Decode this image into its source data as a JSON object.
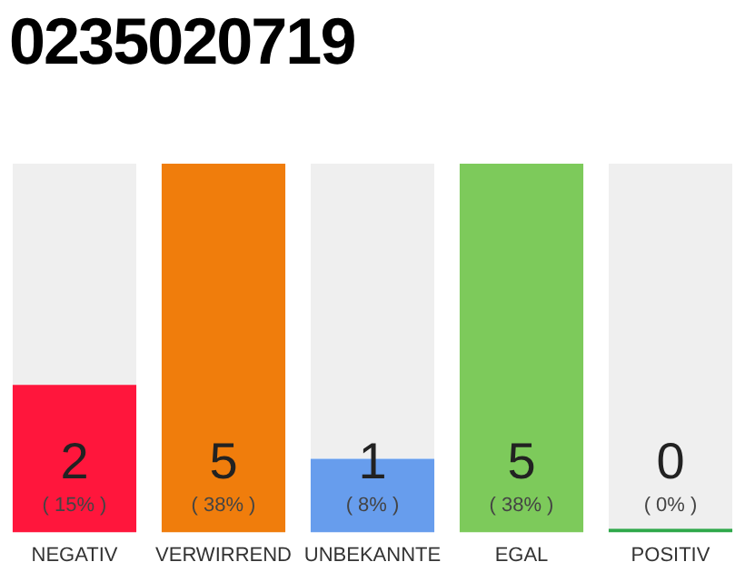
{
  "chart_data": {
    "type": "bar",
    "title": "0235020719",
    "categories": [
      "NEGATIV",
      "VERWIRREND",
      "UNBEKANNTE",
      "EGAL",
      "POSITIV"
    ],
    "values": [
      2,
      5,
      1,
      5,
      0
    ],
    "colors": [
      "#ff163c",
      "#f07d0c",
      "#679ded",
      "#7dca5b",
      "#2ea84a"
    ],
    "ylim": [
      0,
      5
    ],
    "tick_labels": "x",
    "data_labels": true,
    "annotations": [
      "( 15% )",
      "( 38% )",
      "( 8% )",
      "( 38% )",
      "( 0% )"
    ]
  }
}
